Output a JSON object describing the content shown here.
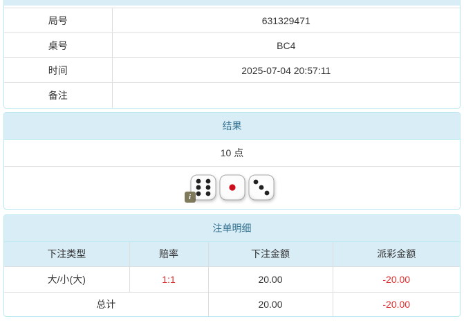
{
  "colors": {
    "header_bg": "#d9edf7",
    "header_text": "#31708f",
    "panel_border": "#bce8f1",
    "row_border": "#dddddd",
    "text": "#333333",
    "negative_red": "#e02b2b",
    "die_pip_black": "#222222",
    "die_pip_red": "#cc0f1e"
  },
  "game_info": {
    "rows": [
      {
        "label": "局号",
        "value": "631329471"
      },
      {
        "label": "桌号",
        "value": "BC4"
      },
      {
        "label": "时间",
        "value": "2025-07-04 20:57:11"
      },
      {
        "label": "备注",
        "value": ""
      }
    ]
  },
  "result": {
    "title": "结果",
    "points": "10 点",
    "dice": [
      6,
      1,
      3
    ],
    "info_badge_glyph": "i"
  },
  "bets": {
    "title": "注单明细",
    "columns": [
      "下注类型",
      "赔率",
      "下注金额",
      "派彩金额"
    ],
    "rows": [
      {
        "type": "大/小(大)",
        "odds": "1:1",
        "amount": "20.00",
        "payout": "-20.00"
      }
    ],
    "total": {
      "label": "总计",
      "amount": "20.00",
      "payout": "-20.00"
    }
  }
}
